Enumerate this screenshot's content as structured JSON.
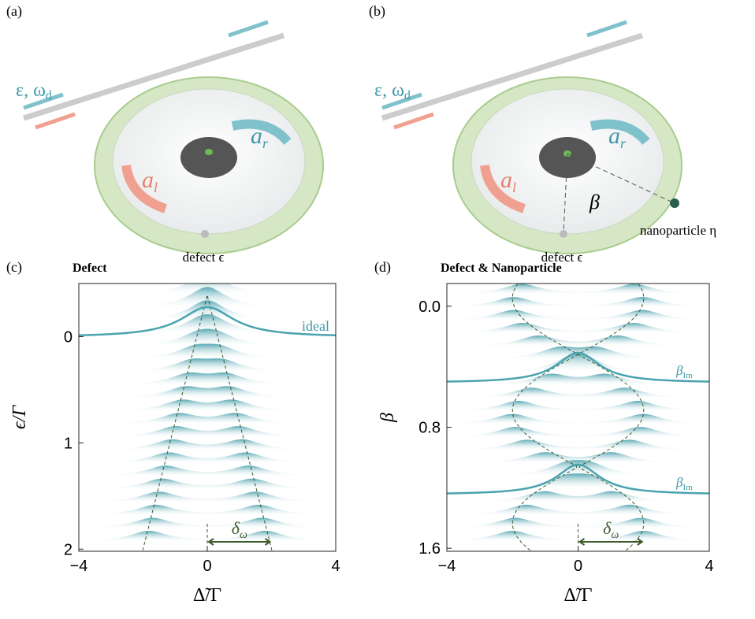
{
  "illustrations": [
    {
      "label": "(a)",
      "drive": {
        "symbol": "ε, ω",
        "sub": "d"
      },
      "mode_right": {
        "symbol": "a",
        "sub": "r"
      },
      "mode_left": {
        "symbol": "a",
        "sub": "l"
      },
      "defect": "defect ϵ"
    },
    {
      "label": "(b)",
      "drive": {
        "symbol": "ε, ω",
        "sub": "d"
      },
      "mode_right": {
        "symbol": "a",
        "sub": "r"
      },
      "mode_left": {
        "symbol": "a",
        "sub": "l"
      },
      "defect": "defect ϵ",
      "angle": "β",
      "particle": "nanoparticle η"
    }
  ],
  "chart_data": [
    {
      "type": "waterfall",
      "panel_label": "(c)",
      "title": "Defect",
      "xlabel": "Δ̃/Γ",
      "ylabel": "ϵ/Γ",
      "xlim": [
        -4,
        4
      ],
      "xticks": [
        {
          "value": -4,
          "label": "−4"
        },
        0,
        4
      ],
      "ylim": [
        -0.5,
        2.02
      ],
      "yticks": [
        0,
        1,
        2
      ],
      "y_inverted": true,
      "curve_labels": [
        "ideal"
      ],
      "splitting_label": {
        "symbol": "δ",
        "sub": "ω"
      }
    },
    {
      "type": "waterfall",
      "panel_label": "(d)",
      "title": "Defect & Nanoparticle",
      "xlabel": "Δ̃/Γ",
      "ylabel": "β",
      "xlim": [
        -4,
        4
      ],
      "xticks": [
        {
          "value": -4,
          "label": "−4"
        },
        0,
        4
      ],
      "ylim": [
        -0.15,
        1.62
      ],
      "yticks": [
        {
          "value": 0,
          "label": "0.0"
        },
        {
          "value": 0.8,
          "label": "0.8"
        },
        {
          "value": 1.6,
          "label": "1.6"
        }
      ],
      "y_inverted": true,
      "curve_labels": [
        {
          "symbol": "β",
          "sub": "Im"
        },
        {
          "symbol": "β",
          "sub": "Im"
        }
      ],
      "splitting_label": {
        "symbol": "δ",
        "sub": "ω"
      }
    }
  ]
}
